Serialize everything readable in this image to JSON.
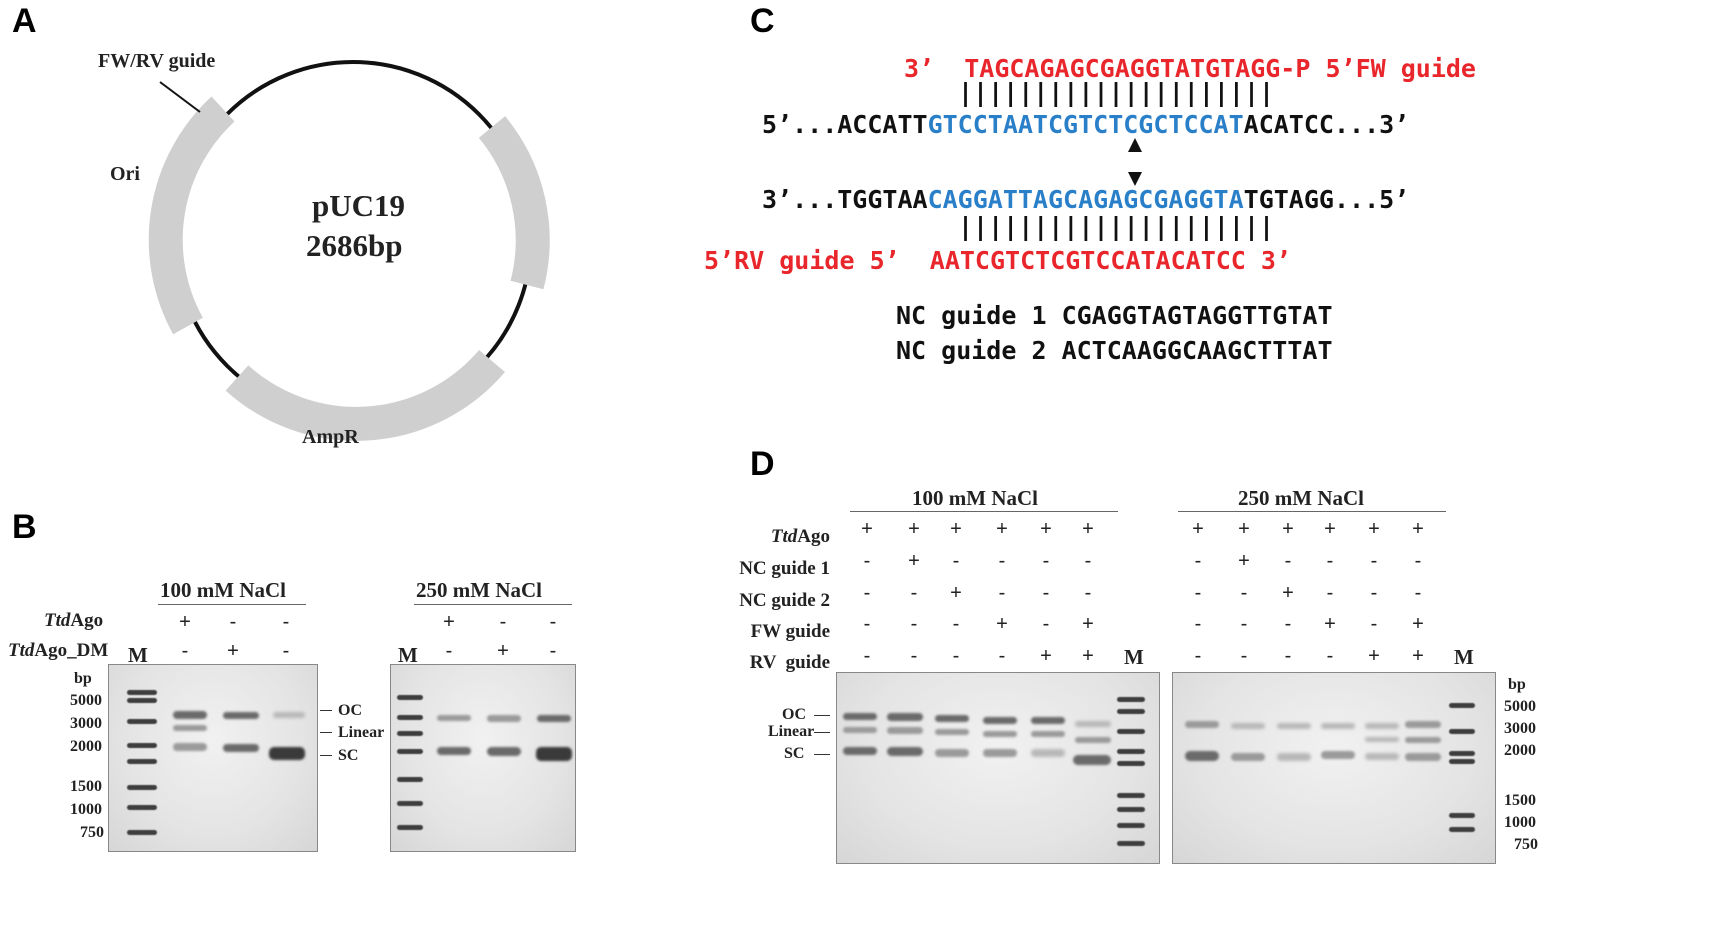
{
  "panels": {
    "a": "A",
    "b": "B",
    "c": "C",
    "d": "D"
  },
  "panel_a": {
    "plasmid_name": "pUC19",
    "plasmid_size": "2686bp",
    "features": {
      "guide": "FW/RV guide",
      "ori": "Ori",
      "ampr": "AmpR"
    }
  },
  "panel_b": {
    "cond1": "100 mM NaCl",
    "cond2": "250 mM NaCl",
    "row1": {
      "italic": "Ttd",
      "rest": "Ago",
      "g1": [
        "+",
        "-",
        "-"
      ],
      "g2": [
        "+",
        "-",
        "-"
      ]
    },
    "row2": {
      "italic": "Ttd",
      "rest": "Ago_DM",
      "g1": [
        "-",
        "+",
        "-"
      ],
      "g2": [
        "-",
        "+",
        "-"
      ]
    },
    "marker": "M",
    "bp_unit": "bp",
    "ladder_sizes": [
      "5000",
      "3000",
      "2000",
      "1500",
      "1000",
      "750"
    ],
    "forms": [
      "OC",
      "Linear",
      "SC"
    ]
  },
  "panel_c": {
    "fw_guide": {
      "p3": "3’",
      "seq": "TAGCAGAGCGAGGTATGTAGG-P",
      "p5": "5’FW guide"
    },
    "top": {
      "pre": "5’...ACCATT",
      "target": "GTCCTAATCGTCTCGCTCCAT",
      "post": "ACATCC...3’"
    },
    "bottom": {
      "pre": "3’...TGGTAA",
      "target": "CAGGATTAGCAGAGCGAGGTA",
      "post": "TGTAGG...5’"
    },
    "rv_guide": {
      "label": "5’RV guide 5’",
      "seq": "AATCGTCTCGTCCATACATCC 3’"
    },
    "bars": "|||||||||||||||||||||",
    "nc1": {
      "name": "NC guide 1",
      "seq": "CGAGGTAGTAGGTTGTAT"
    },
    "nc2": {
      "name": "NC guide 2",
      "seq": "ACTCAAGGCAAGCTTTAT"
    },
    "colors": {
      "red": "#e8262b",
      "blue": "#2a7fc9",
      "black": "#111111"
    }
  },
  "panel_d": {
    "cond1": "100 mM NaCl",
    "cond2": "250 mM NaCl",
    "rows": [
      {
        "italic": "Ttd",
        "rest": "Ago",
        "vals": [
          "+",
          "+",
          "+",
          "+",
          "+",
          "+"
        ]
      },
      {
        "italic": "",
        "rest": "NC guide 1",
        "vals": [
          "-",
          "+",
          "-",
          "-",
          "-",
          "-"
        ]
      },
      {
        "italic": "",
        "rest": "NC guide 2",
        "vals": [
          "-",
          "-",
          "+",
          "-",
          "-",
          "-"
        ]
      },
      {
        "italic": "",
        "rest": "FW guide",
        "vals": [
          "-",
          "-",
          "-",
          "+",
          "-",
          "+"
        ]
      },
      {
        "italic": "",
        "rest": "RV  guide",
        "vals": [
          "-",
          "-",
          "-",
          "-",
          "+",
          "+"
        ]
      }
    ],
    "marker": "M",
    "bp_unit": "bp",
    "ladder_sizes": [
      "5000",
      "3000",
      "2000",
      "1500",
      "1000",
      "750"
    ],
    "forms": [
      "OC",
      "Linear",
      "SC"
    ]
  }
}
